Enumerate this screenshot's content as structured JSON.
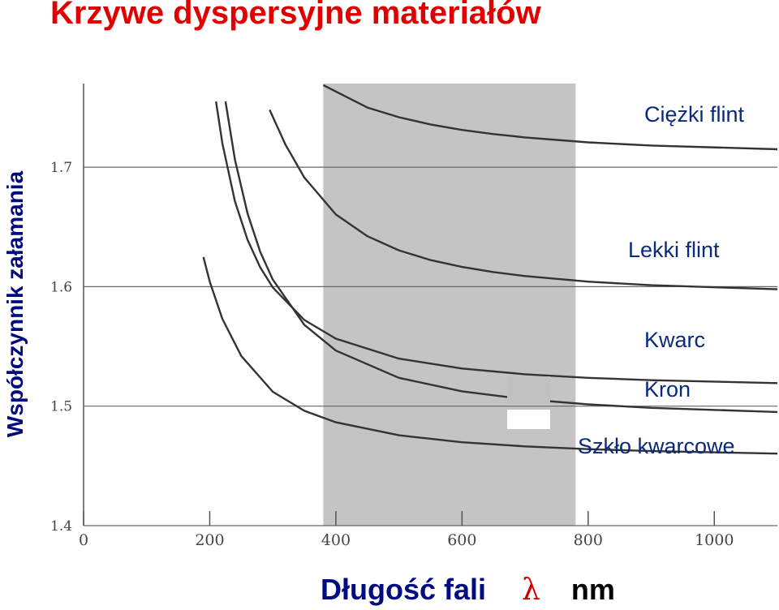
{
  "title": "Krzywe dyspersyjne materiałów",
  "ylabel": "Współczynnik załamania",
  "xlabel": {
    "text": "Długość fali",
    "symbol": "λ",
    "unit": "nm"
  },
  "colors": {
    "title": "#e00000",
    "axis_labels": "#000b80",
    "series_labels": "#0a2a7a",
    "visible_band": "#c4c4c4",
    "curves": "#333333"
  },
  "chart_data": {
    "type": "line",
    "xlim": [
      0,
      1100
    ],
    "ylim": [
      1.4,
      1.77
    ],
    "xticks": [
      0,
      200,
      400,
      600,
      800,
      1000
    ],
    "yticks": [
      1.4,
      1.5,
      1.6,
      1.7
    ],
    "xtick_labels": [
      "0",
      "200",
      "400",
      "600",
      "800",
      "1000"
    ],
    "ytick_labels": [
      "1.4",
      "1.5",
      "1.6",
      "1.7"
    ],
    "grid": true,
    "shaded_band": [
      380,
      780
    ],
    "series": [
      {
        "name": "Ciężki flint",
        "x": [
          380,
          450,
          500,
          550,
          600,
          650,
          700,
          800,
          900,
          1100
        ],
        "y": [
          1.7687,
          1.7499,
          1.7418,
          1.7358,
          1.7312,
          1.7277,
          1.7249,
          1.7208,
          1.7181,
          1.715
        ]
      },
      {
        "name": "Lekki flint",
        "x": [
          295,
          320,
          350,
          400,
          450,
          500,
          550,
          600,
          650,
          700,
          800,
          900,
          1100
        ],
        "y": [
          1.748,
          1.719,
          1.6914,
          1.6604,
          1.6422,
          1.6304,
          1.6223,
          1.6165,
          1.6122,
          1.6089,
          1.6042,
          1.6012,
          1.5978
        ]
      },
      {
        "name": "Kwarc",
        "x": [
          210,
          220,
          240,
          260,
          280,
          300,
          350,
          400,
          500,
          600,
          700,
          800,
          900,
          1100
        ],
        "y": [
          1.755,
          1.7201,
          1.6715,
          1.6391,
          1.6162,
          1.5993,
          1.5722,
          1.5565,
          1.5398,
          1.5315,
          1.5267,
          1.5237,
          1.5217,
          1.5193
        ]
      },
      {
        "name": "Kron",
        "x": [
          225,
          240,
          260,
          280,
          300,
          350,
          400,
          500,
          600,
          700,
          800,
          900,
          1100
        ],
        "y": [
          1.755,
          1.7064,
          1.6612,
          1.6293,
          1.6059,
          1.5681,
          1.5465,
          1.5237,
          1.5124,
          1.5058,
          1.5015,
          1.4986,
          1.4951
        ]
      },
      {
        "name": "Szkło kwarcowe",
        "x": [
          190,
          200,
          220,
          250,
          300,
          350,
          400,
          500,
          600,
          700,
          800,
          900,
          1100
        ],
        "y": [
          1.6248,
          1.6042,
          1.5731,
          1.542,
          1.512,
          1.4961,
          1.4865,
          1.4756,
          1.4698,
          1.4663,
          1.464,
          1.4624,
          1.4603
        ]
      }
    ]
  }
}
